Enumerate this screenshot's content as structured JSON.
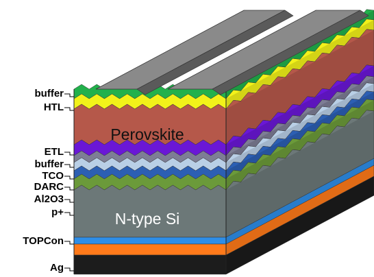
{
  "labels": [
    "buffer",
    "HTL",
    "ETL",
    "buffer",
    "TCO",
    "DARC",
    "Al2O3",
    "p+",
    "TOPCon",
    "Ag"
  ],
  "layer_names": [
    "Perovskite",
    "N-type Si"
  ]
}
